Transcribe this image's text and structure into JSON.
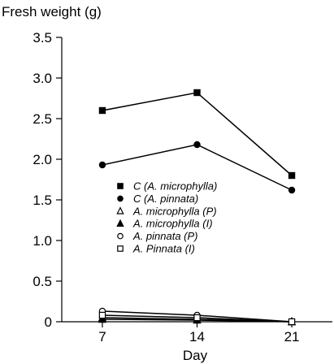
{
  "chart_data": {
    "type": "line",
    "title": "",
    "ylabel": "Fresh weight (g)",
    "xlabel": "Day",
    "x": [
      7,
      14,
      21
    ],
    "xlim": [
      4,
      24
    ],
    "ylim": [
      0,
      3.5
    ],
    "xticks": [
      "7",
      "14",
      "21"
    ],
    "yticks": [
      "0",
      "0.5",
      "1.0",
      "1.5",
      "2.0",
      "2.5",
      "3.0",
      "3.5"
    ],
    "grid": false,
    "legend_position": "center-left",
    "series": [
      {
        "name": "C (A. microphylla)",
        "marker": "square-filled",
        "values": [
          2.6,
          2.82,
          1.8
        ]
      },
      {
        "name": "C (A. pinnata)",
        "marker": "circle-filled",
        "values": [
          1.93,
          2.18,
          1.62
        ]
      },
      {
        "name": "A. microphylla (P)",
        "marker": "triangle-open",
        "values": [
          0.05,
          0.03,
          0.0
        ]
      },
      {
        "name": "A. microphylla (I)",
        "marker": "triangle-filled",
        "values": [
          0.03,
          0.02,
          0.0
        ]
      },
      {
        "name": "A. pinnata (P)",
        "marker": "circle-open",
        "values": [
          0.13,
          0.08,
          0.0
        ]
      },
      {
        "name": "A. Pinnata (I)",
        "marker": "square-open",
        "values": [
          0.08,
          0.05,
          0.0
        ]
      }
    ]
  }
}
